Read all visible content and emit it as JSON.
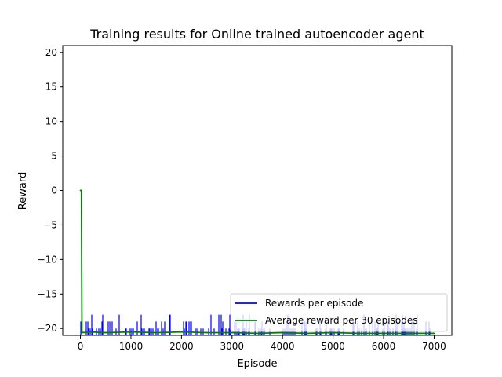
{
  "chart_data": {
    "type": "line",
    "title": "Training results for Online trained autoencoder agent",
    "xlabel": "Episode",
    "ylabel": "Reward",
    "xlim": [
      -350,
      7350
    ],
    "ylim": [
      -21,
      21
    ],
    "xticks": [
      0,
      1000,
      2000,
      3000,
      4000,
      5000,
      6000,
      7000
    ],
    "xtick_labels": [
      "0",
      "1000",
      "2000",
      "3000",
      "4000",
      "5000",
      "6000",
      "7000"
    ],
    "yticks": [
      -20,
      -15,
      -10,
      -5,
      0,
      5,
      10,
      15,
      20
    ],
    "ytick_labels": [
      "−20",
      "−15",
      "−10",
      "−5",
      "0",
      "5",
      "10",
      "15",
      "20"
    ],
    "grid": false,
    "legend_position": "lower right",
    "series": [
      {
        "name": "Rewards per episode",
        "color": "#0000ff",
        "episodes": [
          0,
          7000
        ],
        "baseline": -21,
        "spike_values": [
          -20,
          -19,
          -18
        ],
        "description_points": [
          [
            0,
            -21
          ],
          [
            1000,
            -21
          ],
          [
            2000,
            -21
          ],
          [
            3000,
            -21
          ],
          [
            4000,
            -21
          ],
          [
            5000,
            -21
          ],
          [
            6000,
            -21
          ],
          [
            7000,
            -21
          ]
        ]
      },
      {
        "name": "Average reward per 30 episodes",
        "color": "#008000",
        "x": [
          0,
          10,
          20,
          30,
          200,
          500,
          1000,
          1500,
          2000,
          2500,
          3000,
          3500,
          4000,
          4500,
          5000,
          5500,
          6000,
          6500,
          7000
        ],
        "y": [
          0,
          0,
          0,
          -20.6,
          -20.5,
          -20.6,
          -20.5,
          -20.6,
          -20.5,
          -20.6,
          -20.6,
          -20.7,
          -20.6,
          -20.7,
          -20.6,
          -20.7,
          -20.7,
          -20.7,
          -20.7
        ]
      }
    ]
  }
}
